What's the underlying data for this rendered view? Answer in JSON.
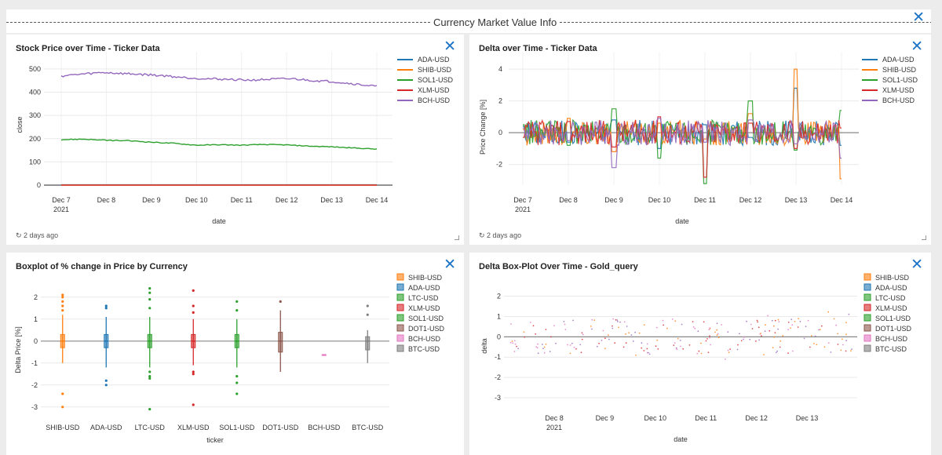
{
  "dashboard": {
    "title": "Currency Market Value Info",
    "close_symbol": "✕"
  },
  "panels": [
    {
      "title": "Stock Price over Time - Ticker Data",
      "refresh": "↻ 2 days ago"
    },
    {
      "title": "Delta over Time - Ticker Data",
      "refresh": "↻ 2 days ago"
    },
    {
      "title": "Boxplot of % change in Price by Currency"
    },
    {
      "title": "Delta Box-Plot Over Time - Gold_query"
    }
  ],
  "colors": {
    "ADA-USD": "#1f77b4",
    "SHIB-USD": "#ff7f0e",
    "SOL1-USD": "#2ca02c",
    "XLM-USD": "#d62728",
    "BCH-USD": "#9467bd",
    "LTC-USD": "#2ca02c",
    "DOT1-USD": "#8c564b",
    "BCH-USD-box": "#e377c2",
    "BTC-USD": "#7f7f7f"
  },
  "chart_data": [
    {
      "type": "line",
      "title": "Stock Price over Time - Ticker Data",
      "xlabel": "date",
      "ylabel": "close",
      "x_ticks": [
        "Dec 7",
        "Dec 8",
        "Dec 9",
        "Dec 10",
        "Dec 11",
        "Dec 12",
        "Dec 13",
        "Dec 14"
      ],
      "x_subtick": "2021",
      "y_ticks": [
        0,
        100,
        200,
        300,
        400,
        500
      ],
      "ylim": [
        0,
        520
      ],
      "series": [
        {
          "name": "ADA-USD",
          "values": [
            1.5,
            1.5,
            1.4,
            1.4,
            1.3,
            1.3,
            1.3,
            1.3
          ]
        },
        {
          "name": "SHIB-USD",
          "values": [
            0,
            0,
            0,
            0,
            0,
            0,
            0,
            0
          ]
        },
        {
          "name": "SOL1-USD",
          "values": [
            196,
            198,
            193,
            191,
            185,
            180,
            172,
            174,
            172,
            175,
            173,
            168,
            165,
            160,
            155
          ]
        },
        {
          "name": "XLM-USD",
          "values": [
            0.3,
            0.3,
            0.3,
            0.3,
            0.3,
            0.3,
            0.3,
            0.3
          ]
        },
        {
          "name": "BCH-USD",
          "values": [
            470,
            478,
            485,
            480,
            476,
            470,
            462,
            458,
            455,
            452,
            456,
            458,
            450,
            445,
            435,
            425
          ]
        }
      ]
    },
    {
      "type": "line",
      "title": "Delta over Time - Ticker Data",
      "xlabel": "date",
      "ylabel": "Price Change [%]",
      "x_ticks": [
        "Dec 7",
        "Dec 8",
        "Dec 9",
        "Dec 10",
        "Dec 11",
        "Dec 12",
        "Dec 13",
        "Dec 14"
      ],
      "x_subtick": "2021",
      "y_ticks": [
        -2,
        0,
        2,
        4
      ],
      "ylim": [
        -3.3,
        4.3
      ],
      "series": [
        {
          "name": "ADA-USD",
          "values": [
            0.4,
            -0.6,
            0.8,
            -1.0,
            0.5,
            -0.3,
            2.8,
            -0.8
          ]
        },
        {
          "name": "SHIB-USD",
          "values": [
            0.2,
            0.9,
            -1.2,
            0.6,
            -0.4,
            1.2,
            4.0,
            -2.9
          ]
        },
        {
          "name": "SOL1-USD",
          "values": [
            0.5,
            -0.8,
            1.5,
            -1.6,
            -3.2,
            2.0,
            -1.1,
            1.4
          ]
        },
        {
          "name": "XLM-USD",
          "values": [
            -0.3,
            0.7,
            -0.9,
            1.0,
            -2.8,
            0.6,
            -1.0,
            0.3
          ]
        },
        {
          "name": "BCH-USD",
          "values": [
            0.3,
            -0.5,
            -2.2,
            0.9,
            -0.6,
            0.8,
            -0.7,
            -1.6
          ]
        }
      ]
    },
    {
      "type": "box",
      "title": "Boxplot of % change in Price by Currency",
      "xlabel": "ticker",
      "ylabel": "Delta Price [%]",
      "y_ticks": [
        -3,
        -2,
        -1,
        0,
        1,
        2
      ],
      "ylim": [
        -3.4,
        2.6
      ],
      "categories": [
        "SHIB-USD",
        "ADA-USD",
        "LTC-USD",
        "XLM-USD",
        "SOL1-USD",
        "DOT1-USD",
        "BCH-USD",
        "BTC-USD"
      ],
      "legend": [
        "SHIB-USD",
        "ADA-USD",
        "LTC-USD",
        "XLM-USD",
        "SOL1-USD",
        "DOT1-USD",
        "BCH-USD",
        "BTC-USD"
      ],
      "boxes": [
        {
          "name": "SHIB-USD",
          "q1": -0.3,
          "median": 0,
          "q3": 0.3,
          "low": -1.0,
          "high": 1.2,
          "outliers": [
            1.4,
            1.6,
            1.8,
            2.0,
            2.1,
            -2.4,
            -3.0
          ]
        },
        {
          "name": "ADA-USD",
          "q1": -0.3,
          "median": 0,
          "q3": 0.3,
          "low": -1.2,
          "high": 1.1,
          "outliers": [
            1.5,
            1.6,
            -1.8,
            -2.0
          ]
        },
        {
          "name": "LTC-USD",
          "q1": -0.3,
          "median": 0,
          "q3": 0.3,
          "low": -1.2,
          "high": 1.1,
          "outliers": [
            1.5,
            1.9,
            2.2,
            2.4,
            -1.4,
            -1.6,
            -1.7,
            -3.1
          ]
        },
        {
          "name": "XLM-USD",
          "q1": -0.3,
          "median": 0,
          "q3": 0.3,
          "low": -1.1,
          "high": 1.0,
          "outliers": [
            1.3,
            1.6,
            2.3,
            -1.4,
            -1.5,
            -2.9
          ]
        },
        {
          "name": "SOL1-USD",
          "q1": -0.3,
          "median": 0,
          "q3": 0.3,
          "low": -1.2,
          "high": 1.0,
          "outliers": [
            1.4,
            1.8,
            -1.6,
            -1.9,
            -2.4
          ]
        },
        {
          "name": "DOT1-USD",
          "q1": -0.5,
          "median": 0,
          "q3": 0.4,
          "low": -1.4,
          "high": 1.4,
          "outliers": [
            1.8
          ]
        },
        {
          "name": "BCH-USD",
          "q1": -0.62,
          "median": -0.62,
          "q3": -0.62,
          "low": -0.62,
          "high": -0.62,
          "outliers": []
        },
        {
          "name": "BTC-USD",
          "q1": -0.4,
          "median": 0,
          "q3": 0.2,
          "low": -1.0,
          "high": 0.5,
          "outliers": [
            1.2,
            1.6
          ]
        }
      ]
    },
    {
      "type": "scatter",
      "title": "Delta Box-Plot Over Time - Gold_query",
      "xlabel": "date",
      "ylabel": "delta",
      "x_ticks": [
        "Dec 8",
        "Dec 9",
        "Dec 10",
        "Dec 11",
        "Dec 12",
        "Dec 13"
      ],
      "x_subtick": "2021",
      "y_ticks": [
        -3,
        -2,
        -1,
        0,
        1,
        2
      ],
      "ylim": [
        -3.5,
        2.6
      ],
      "legend": [
        "SHIB-USD",
        "ADA-USD",
        "LTC-USD",
        "XLM-USD",
        "SOL1-USD",
        "DOT1-USD",
        "BCH-USD",
        "BTC-USD"
      ]
    }
  ]
}
